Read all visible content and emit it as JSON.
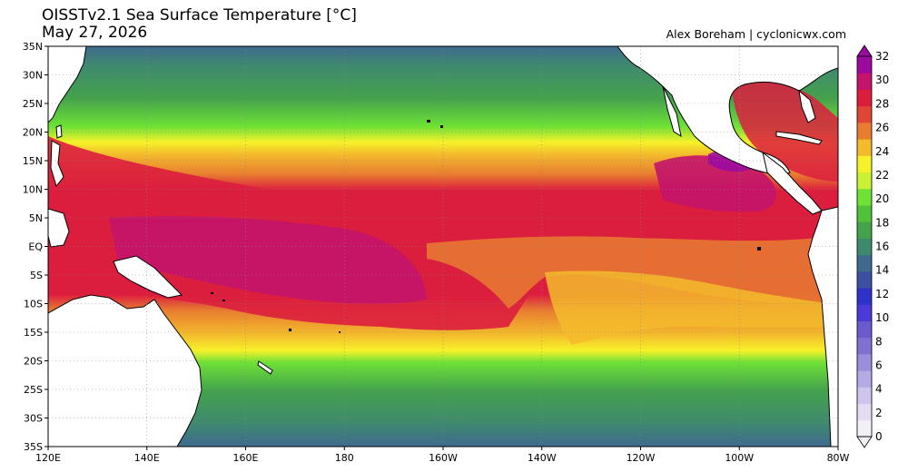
{
  "header": {
    "title": "OISSTv2.1 Sea Surface Temperature [°C]",
    "date": "May 27, 2026",
    "credit": "Alex Boreham | cyclonicwx.com"
  },
  "map": {
    "region": "Tropical Pacific Ocean",
    "lat_labels": [
      "35N",
      "30N",
      "25N",
      "20N",
      "15N",
      "10N",
      "5N",
      "EQ",
      "5S",
      "10S",
      "15S",
      "20S",
      "25S",
      "30S",
      "35S"
    ],
    "lon_labels": [
      "120E",
      "140E",
      "160E",
      "180",
      "160W",
      "140W",
      "120W",
      "100W",
      "80W"
    ],
    "land_color": "#ffffff",
    "coastline_color": "#000000"
  },
  "colorbar": {
    "labels": [
      "0",
      "2",
      "4",
      "6",
      "8",
      "10",
      "12",
      "14",
      "16",
      "18",
      "20",
      "22",
      "24",
      "26",
      "28",
      "30",
      "32"
    ],
    "colors": [
      "#f4f0fa",
      "#e3dcf3",
      "#cfc5ec",
      "#b6aae4",
      "#9c8edb",
      "#8070d2",
      "#6a5acd",
      "#4a3ad6",
      "#2e32c8",
      "#3d4fa0",
      "#3f6a8e",
      "#3f8a6e",
      "#44a24c",
      "#52c13a",
      "#6ee136",
      "#c8f233",
      "#f6f22a",
      "#f3bb2c",
      "#e87d30",
      "#e04535",
      "#dc1e3e",
      "#c3136a",
      "#9c0a9f"
    ]
  }
}
